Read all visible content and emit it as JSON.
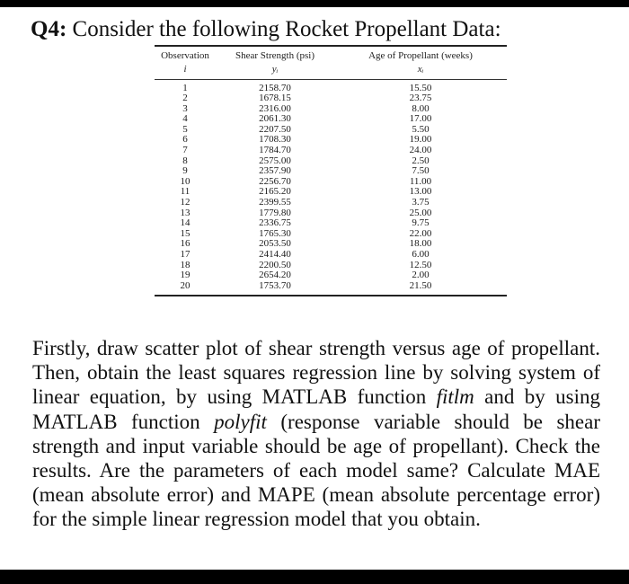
{
  "question": {
    "number": "Q4:",
    "title": "Consider the following Rocket Propellant Data:"
  },
  "table": {
    "headers": [
      "Observation",
      "Shear Strength (psi)",
      "Age of Propellant (weeks)"
    ],
    "symbols": [
      "i",
      "yᵢ",
      "xᵢ"
    ],
    "rows": [
      [
        "1",
        "2158.70",
        "15.50"
      ],
      [
        "2",
        "1678.15",
        "23.75"
      ],
      [
        "3",
        "2316.00",
        "8.00"
      ],
      [
        "4",
        "2061.30",
        "17.00"
      ],
      [
        "5",
        "2207.50",
        "5.50"
      ],
      [
        "6",
        "1708.30",
        "19.00"
      ],
      [
        "7",
        "1784.70",
        "24.00"
      ],
      [
        "8",
        "2575.00",
        "2.50"
      ],
      [
        "9",
        "2357.90",
        "7.50"
      ],
      [
        "10",
        "2256.70",
        "11.00"
      ],
      [
        "11",
        "2165.20",
        "13.00"
      ],
      [
        "12",
        "2399.55",
        "3.75"
      ],
      [
        "13",
        "1779.80",
        "25.00"
      ],
      [
        "14",
        "2336.75",
        "9.75"
      ],
      [
        "15",
        "1765.30",
        "22.00"
      ],
      [
        "16",
        "2053.50",
        "18.00"
      ],
      [
        "17",
        "2414.40",
        "6.00"
      ],
      [
        "18",
        "2200.50",
        "12.50"
      ],
      [
        "19",
        "2654.20",
        "2.00"
      ],
      [
        "20",
        "1753.70",
        "21.50"
      ]
    ]
  },
  "paragraph": {
    "part1": "Firstly, draw scatter plot of shear strength versus age of propellant. Then, obtain the least squares regression line by solving system of linear equation, by using MATLAB function ",
    "fn1": "fitlm",
    "part2": " and by using MATLAB function ",
    "fn2": "polyfit",
    "part3": " (response variable should be shear strength and input variable should be age of propellant). Check the results. Are the parameters of each model same? Calculate MAE (mean absolute error) and MAPE (mean absolute percentage error) for the simple linear regression model that you obtain."
  }
}
